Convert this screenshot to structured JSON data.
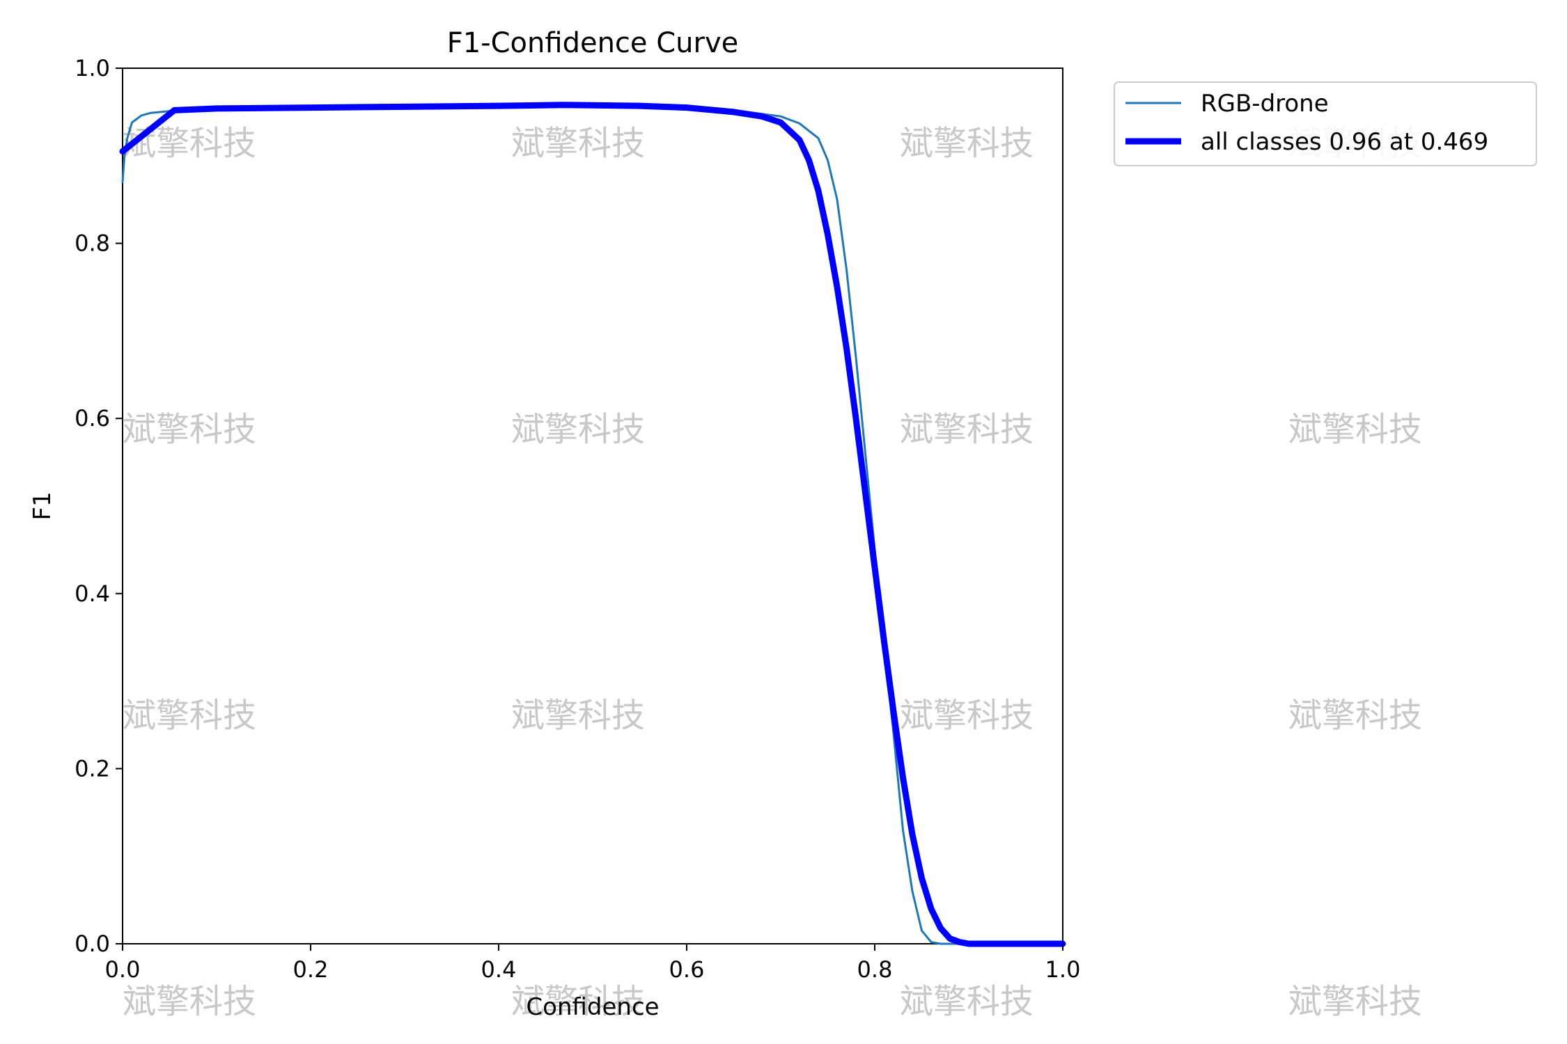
{
  "chart_data": {
    "type": "line",
    "title": "F1-Confidence Curve",
    "xlabel": "Confidence",
    "ylabel": "F1",
    "xlim": [
      0.0,
      1.0
    ],
    "ylim": [
      0.0,
      1.0
    ],
    "xticks": [
      0.0,
      0.2,
      0.4,
      0.6,
      0.8,
      1.0
    ],
    "yticks": [
      0.0,
      0.2,
      0.4,
      0.6,
      0.8,
      1.0
    ],
    "xtick_labels": [
      "0.0",
      "0.2",
      "0.4",
      "0.6",
      "0.8",
      "1.0"
    ],
    "ytick_labels": [
      "0.0",
      "0.2",
      "0.4",
      "0.6",
      "0.8",
      "1.0"
    ],
    "grid": false,
    "legend_position": "outside-top-right",
    "series": [
      {
        "name": "RGB-drone",
        "color": "#1f77b4",
        "x": [
          0.0,
          0.002,
          0.005,
          0.01,
          0.02,
          0.03,
          0.05,
          0.1,
          0.2,
          0.3,
          0.4,
          0.5,
          0.6,
          0.65,
          0.7,
          0.72,
          0.74,
          0.75,
          0.76,
          0.77,
          0.78,
          0.79,
          0.8,
          0.81,
          0.82,
          0.83,
          0.84,
          0.85,
          0.86,
          0.87,
          0.9,
          1.0
        ],
        "y": [
          0.87,
          0.9,
          0.92,
          0.938,
          0.946,
          0.949,
          0.951,
          0.953,
          0.955,
          0.956,
          0.957,
          0.958,
          0.955,
          0.952,
          0.945,
          0.937,
          0.92,
          0.895,
          0.85,
          0.77,
          0.67,
          0.56,
          0.45,
          0.34,
          0.24,
          0.13,
          0.06,
          0.015,
          0.002,
          0.0,
          0.0,
          0.0
        ]
      },
      {
        "name": "all classes 0.96 at 0.469",
        "color": "#0000ff",
        "x": [
          0.0,
          0.055,
          0.1,
          0.2,
          0.3,
          0.4,
          0.469,
          0.55,
          0.6,
          0.65,
          0.68,
          0.7,
          0.72,
          0.73,
          0.74,
          0.75,
          0.76,
          0.77,
          0.78,
          0.79,
          0.8,
          0.81,
          0.82,
          0.83,
          0.84,
          0.85,
          0.86,
          0.87,
          0.88,
          0.89,
          0.9,
          1.0
        ],
        "y": [
          0.905,
          0.952,
          0.954,
          0.955,
          0.956,
          0.957,
          0.958,
          0.957,
          0.955,
          0.95,
          0.945,
          0.938,
          0.918,
          0.895,
          0.86,
          0.81,
          0.75,
          0.68,
          0.6,
          0.515,
          0.43,
          0.345,
          0.265,
          0.19,
          0.125,
          0.075,
          0.04,
          0.018,
          0.006,
          0.002,
          0.0,
          0.0
        ]
      }
    ]
  },
  "watermark": {
    "text": "斌擎科技"
  }
}
